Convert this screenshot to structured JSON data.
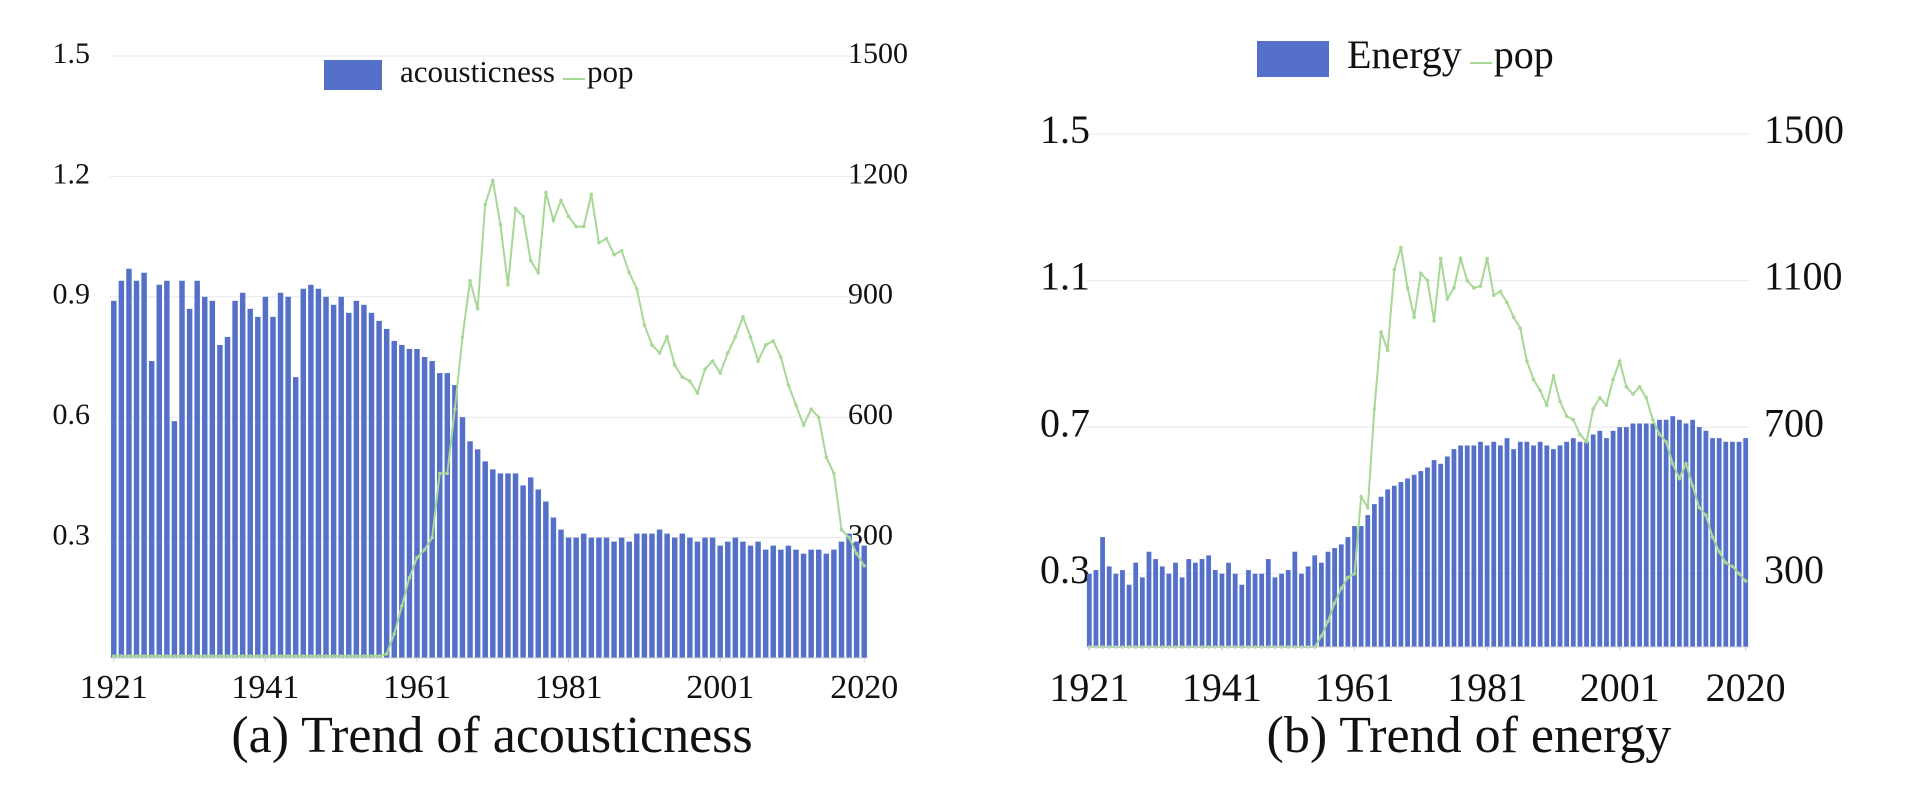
{
  "chart_data": [
    {
      "type": "bar",
      "title": "(a) Trend of acousticness",
      "legend": "upper center",
      "grid": true,
      "x": [
        1921,
        1922,
        1923,
        1924,
        1925,
        1926,
        1927,
        1928,
        1929,
        1930,
        1931,
        1932,
        1933,
        1934,
        1935,
        1936,
        1937,
        1938,
        1939,
        1940,
        1941,
        1942,
        1943,
        1944,
        1945,
        1946,
        1947,
        1948,
        1949,
        1950,
        1951,
        1952,
        1953,
        1954,
        1955,
        1956,
        1957,
        1958,
        1959,
        1960,
        1961,
        1962,
        1963,
        1964,
        1965,
        1966,
        1967,
        1968,
        1969,
        1970,
        1971,
        1972,
        1973,
        1974,
        1975,
        1976,
        1977,
        1978,
        1979,
        1980,
        1981,
        1982,
        1983,
        1984,
        1985,
        1986,
        1987,
        1988,
        1989,
        1990,
        1991,
        1992,
        1993,
        1994,
        1995,
        1996,
        1997,
        1998,
        1999,
        2000,
        2001,
        2002,
        2003,
        2004,
        2005,
        2006,
        2007,
        2008,
        2009,
        2010,
        2011,
        2012,
        2013,
        2014,
        2015,
        2016,
        2017,
        2018,
        2019,
        2020
      ],
      "xlim": [
        1920.5,
        2020.5
      ],
      "xticks": [
        1921,
        1941,
        1961,
        1981,
        2001,
        2020
      ],
      "ylim": [
        0,
        1.5
      ],
      "yticks": [
        0.3,
        0.6,
        0.9,
        1.2,
        1.5
      ],
      "y2lim": [
        0,
        1500
      ],
      "y2ticks": [
        300,
        600,
        900,
        1200,
        1500
      ],
      "series": [
        {
          "name": "acousticness",
          "type": "bar",
          "color": "#5470c9",
          "values": [
            0.89,
            0.94,
            0.97,
            0.94,
            0.96,
            0.74,
            0.93,
            0.94,
            0.59,
            0.94,
            0.87,
            0.94,
            0.9,
            0.89,
            0.78,
            0.8,
            0.89,
            0.91,
            0.87,
            0.85,
            0.9,
            0.85,
            0.91,
            0.9,
            0.7,
            0.92,
            0.93,
            0.92,
            0.9,
            0.88,
            0.9,
            0.86,
            0.89,
            0.88,
            0.86,
            0.84,
            0.82,
            0.79,
            0.78,
            0.77,
            0.77,
            0.75,
            0.74,
            0.71,
            0.71,
            0.68,
            0.6,
            0.54,
            0.52,
            0.49,
            0.47,
            0.46,
            0.46,
            0.46,
            0.43,
            0.45,
            0.42,
            0.39,
            0.35,
            0.32,
            0.3,
            0.3,
            0.31,
            0.3,
            0.3,
            0.3,
            0.29,
            0.3,
            0.29,
            0.31,
            0.31,
            0.31,
            0.32,
            0.31,
            0.3,
            0.31,
            0.3,
            0.29,
            0.3,
            0.3,
            0.28,
            0.29,
            0.3,
            0.29,
            0.28,
            0.29,
            0.27,
            0.28,
            0.27,
            0.28,
            0.27,
            0.26,
            0.27,
            0.27,
            0.26,
            0.27,
            0.29,
            0.31,
            0.29,
            0.28
          ]
        },
        {
          "name": "pop",
          "type": "line",
          "axis": "y2",
          "color": "#a6d896",
          "values": [
            5,
            5,
            5,
            5,
            5,
            5,
            5,
            5,
            5,
            5,
            5,
            5,
            5,
            5,
            5,
            5,
            5,
            5,
            5,
            5,
            5,
            5,
            5,
            5,
            5,
            5,
            5,
            5,
            5,
            5,
            5,
            5,
            5,
            5,
            5,
            5,
            10,
            60,
            130,
            200,
            250,
            270,
            300,
            460,
            460,
            620,
            800,
            940,
            870,
            1130,
            1190,
            1080,
            930,
            1120,
            1100,
            990,
            960,
            1160,
            1090,
            1140,
            1100,
            1075,
            1075,
            1155,
            1035,
            1045,
            1005,
            1015,
            960,
            920,
            830,
            780,
            760,
            800,
            730,
            700,
            690,
            660,
            720,
            740,
            710,
            760,
            800,
            850,
            800,
            740,
            780,
            790,
            750,
            680,
            630,
            580,
            620,
            600,
            500,
            460,
            320,
            300,
            260,
            230
          ]
        }
      ]
    },
    {
      "type": "bar",
      "title": "(b) Trend of energy",
      "legend": "upper center",
      "grid": true,
      "x": [
        1921,
        1922,
        1923,
        1924,
        1925,
        1926,
        1927,
        1928,
        1929,
        1930,
        1931,
        1932,
        1933,
        1934,
        1935,
        1936,
        1937,
        1938,
        1939,
        1940,
        1941,
        1942,
        1943,
        1944,
        1945,
        1946,
        1947,
        1948,
        1949,
        1950,
        1951,
        1952,
        1953,
        1954,
        1955,
        1956,
        1957,
        1958,
        1959,
        1960,
        1961,
        1962,
        1963,
        1964,
        1965,
        1966,
        1967,
        1968,
        1969,
        1970,
        1971,
        1972,
        1973,
        1974,
        1975,
        1976,
        1977,
        1978,
        1979,
        1980,
        1981,
        1982,
        1983,
        1984,
        1985,
        1986,
        1987,
        1988,
        1989,
        1990,
        1991,
        1992,
        1993,
        1994,
        1995,
        1996,
        1997,
        1998,
        1999,
        2000,
        2001,
        2002,
        2003,
        2004,
        2005,
        2006,
        2007,
        2008,
        2009,
        2010,
        2011,
        2012,
        2013,
        2014,
        2015,
        2016,
        2017,
        2018,
        2019,
        2020
      ],
      "xlim": [
        1920.5,
        2020.5
      ],
      "xticks": [
        1921,
        1941,
        1961,
        1981,
        2001,
        2020
      ],
      "ylim": [
        0.1,
        1.5
      ],
      "yticks": [
        0.3,
        0.7,
        1.1,
        1.5
      ],
      "y2lim": [
        100,
        1500
      ],
      "y2ticks": [
        300,
        700,
        1100,
        1500
      ],
      "series": [
        {
          "name": "Energy",
          "type": "bar",
          "color": "#5470c9",
          "values": [
            0.3,
            0.31,
            0.4,
            0.32,
            0.3,
            0.31,
            0.27,
            0.33,
            0.29,
            0.36,
            0.34,
            0.32,
            0.3,
            0.33,
            0.29,
            0.34,
            0.33,
            0.34,
            0.35,
            0.31,
            0.3,
            0.33,
            0.3,
            0.27,
            0.31,
            0.3,
            0.3,
            0.34,
            0.29,
            0.3,
            0.31,
            0.36,
            0.3,
            0.32,
            0.35,
            0.33,
            0.36,
            0.37,
            0.38,
            0.4,
            0.43,
            0.43,
            0.46,
            0.49,
            0.51,
            0.53,
            0.54,
            0.55,
            0.56,
            0.57,
            0.58,
            0.59,
            0.61,
            0.6,
            0.62,
            0.64,
            0.65,
            0.65,
            0.65,
            0.66,
            0.65,
            0.66,
            0.65,
            0.67,
            0.64,
            0.66,
            0.66,
            0.65,
            0.66,
            0.65,
            0.64,
            0.65,
            0.66,
            0.67,
            0.66,
            0.66,
            0.68,
            0.69,
            0.67,
            0.69,
            0.7,
            0.7,
            0.71,
            0.71,
            0.71,
            0.71,
            0.72,
            0.72,
            0.73,
            0.72,
            0.71,
            0.72,
            0.7,
            0.69,
            0.67,
            0.67,
            0.66,
            0.66,
            0.66,
            0.67
          ]
        },
        {
          "name": "pop",
          "type": "line",
          "axis": "y2",
          "color": "#a6d896",
          "values": [
            100,
            100,
            100,
            100,
            100,
            100,
            100,
            100,
            100,
            100,
            100,
            100,
            100,
            100,
            100,
            100,
            100,
            100,
            100,
            100,
            100,
            100,
            100,
            100,
            100,
            100,
            100,
            100,
            100,
            100,
            100,
            100,
            100,
            100,
            100,
            130,
            170,
            220,
            260,
            290,
            300,
            510,
            480,
            750,
            960,
            910,
            1130,
            1190,
            1080,
            1000,
            1120,
            1100,
            990,
            1160,
            1050,
            1080,
            1160,
            1100,
            1080,
            1085,
            1160,
            1060,
            1070,
            1040,
            1000,
            970,
            880,
            830,
            800,
            760,
            840,
            770,
            730,
            720,
            680,
            660,
            750,
            780,
            760,
            830,
            880,
            810,
            790,
            810,
            780,
            720,
            680,
            660,
            600,
            560,
            600,
            540,
            480,
            460,
            400,
            360,
            330,
            320,
            300,
            280
          ]
        }
      ]
    }
  ]
}
